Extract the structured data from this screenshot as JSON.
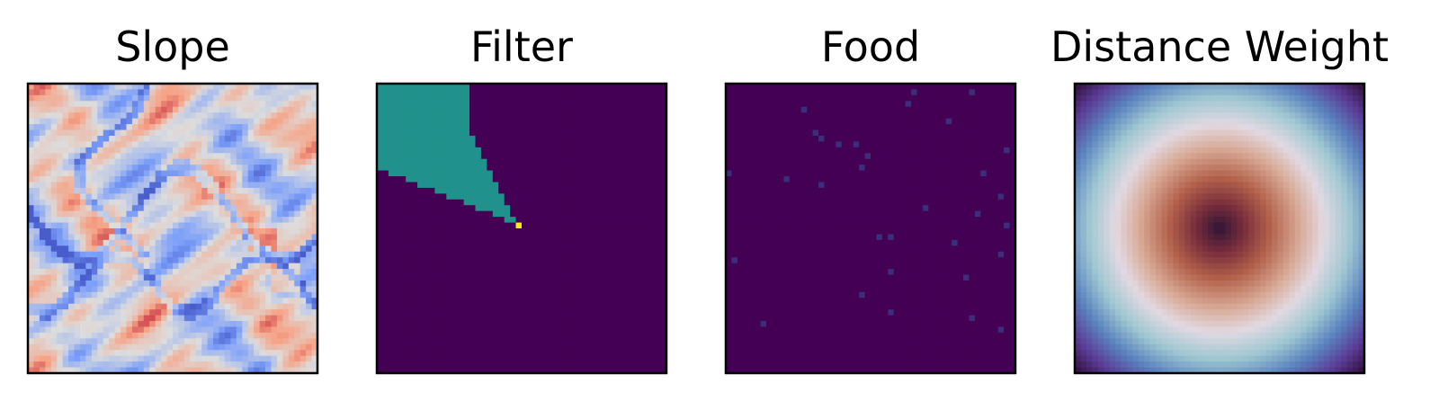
{
  "figure": {
    "panels": [
      {
        "title": "Slope",
        "colormap": "coolwarm"
      },
      {
        "title": "Filter",
        "colormap": "viridis"
      },
      {
        "title": "Food",
        "colormap": "viridis"
      },
      {
        "title": "Distance Weight",
        "colormap": "twilight_shifted"
      }
    ]
  },
  "chart_data": [
    {
      "type": "heatmap",
      "title": "Slope",
      "grid": "50x50",
      "colormap": "coolwarm",
      "description_of_values": "mostly low-to-mid values (blue/white) with darker blue ridge lines and a few warm pink patches",
      "xlabel": "",
      "ylabel": ""
    },
    {
      "type": "heatmap",
      "title": "Filter",
      "grid": "50x50",
      "colormap": "viridis",
      "levels": [
        0,
        0.5,
        1
      ],
      "colors": {
        "0": "#440154",
        "0.5": "#21918c",
        "1": "#fde725"
      },
      "wedge_apex_cell": {
        "row": 24,
        "col": 24
      },
      "wedge_direction": "upper-left"
    },
    {
      "type": "heatmap",
      "title": "Food",
      "grid": "50x50",
      "colormap": "viridis",
      "background_value": 0,
      "sparse_points": [
        {
          "row": 1,
          "col": 32
        },
        {
          "row": 1,
          "col": 42
        },
        {
          "row": 3,
          "col": 31
        },
        {
          "row": 4,
          "col": 13
        },
        {
          "row": 6,
          "col": 38
        },
        {
          "row": 8,
          "col": 15
        },
        {
          "row": 9,
          "col": 16
        },
        {
          "row": 10,
          "col": 19
        },
        {
          "row": 10,
          "col": 22
        },
        {
          "row": 11,
          "col": 48
        },
        {
          "row": 12,
          "col": 24
        },
        {
          "row": 14,
          "col": 23
        },
        {
          "row": 15,
          "col": 44
        },
        {
          "row": 15,
          "col": 0
        },
        {
          "row": 16,
          "col": 10
        },
        {
          "row": 17,
          "col": 16
        },
        {
          "row": 19,
          "col": 47
        },
        {
          "row": 21,
          "col": 34
        },
        {
          "row": 22,
          "col": 43
        },
        {
          "row": 24,
          "col": 48
        },
        {
          "row": 26,
          "col": 28
        },
        {
          "row": 26,
          "col": 26
        },
        {
          "row": 27,
          "col": 39
        },
        {
          "row": 29,
          "col": 47
        },
        {
          "row": 30,
          "col": 1
        },
        {
          "row": 32,
          "col": 28
        },
        {
          "row": 33,
          "col": 41
        },
        {
          "row": 36,
          "col": 23
        },
        {
          "row": 39,
          "col": 28
        },
        {
          "row": 41,
          "col": 6
        },
        {
          "row": 42,
          "col": 47
        },
        {
          "row": 40,
          "col": 42
        }
      ]
    },
    {
      "type": "heatmap",
      "title": "Distance Weight",
      "grid": "50x50",
      "colormap": "twilight_shifted",
      "pattern": "radial rings centered at the middle cell",
      "rings_inner_to_outer": [
        "dark center",
        "brown/red",
        "light",
        "teal",
        "blue",
        "purple corners"
      ]
    }
  ]
}
